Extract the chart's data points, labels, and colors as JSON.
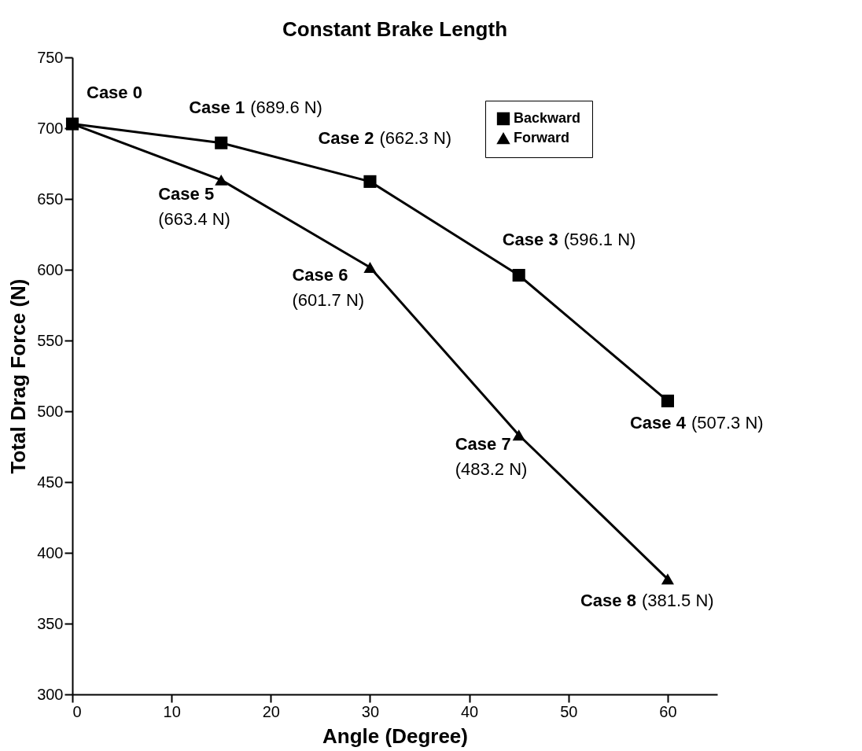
{
  "chart_data": {
    "type": "line",
    "title": "Constant Brake Length",
    "xlabel": "Angle (Degree)",
    "ylabel": "Total Drag Force (N)",
    "x": [
      0,
      15,
      30,
      45,
      60
    ],
    "series": [
      {
        "name": "Backward",
        "color": "#000000",
        "marker": "square",
        "values": [
          703,
          689.6,
          662.3,
          596.1,
          507.3
        ]
      },
      {
        "name": "Forward",
        "color": "#000000",
        "marker": "triangle",
        "values": [
          703,
          663.4,
          601.7,
          483.2,
          381.5
        ]
      }
    ],
    "xlim": [
      0,
      65
    ],
    "xticks": [
      0,
      10,
      20,
      30,
      40,
      50,
      60
    ],
    "ylim": [
      300,
      750
    ],
    "yticks": [
      300,
      350,
      400,
      450,
      500,
      550,
      600,
      650,
      700,
      750
    ],
    "grid": false,
    "legend": "top right",
    "line_style": "solid",
    "annotations": [
      {
        "text": "Case 0",
        "x": 0,
        "y": 703
      },
      {
        "text": "Case 1 (689.6 N)",
        "x": 15,
        "y": 689.6
      },
      {
        "text": "Case 2 (662.3 N)",
        "x": 30,
        "y": 662.3
      },
      {
        "text": "Case 3 (596.1 N)",
        "x": 45,
        "y": 596.1
      },
      {
        "text": "Case 4 (507.3 N)",
        "x": 60,
        "y": 507.3
      },
      {
        "text": "Case 5 (663.4 N)",
        "x": 15,
        "y": 663.4
      },
      {
        "text": "Case 6 (601.7 N)",
        "x": 30,
        "y": 601.7
      },
      {
        "text": "Case 7 (483.2 N)",
        "x": 45,
        "y": 483.2
      },
      {
        "text": "Case 8 (381.5 N)",
        "x": 60,
        "y": 381.5
      }
    ]
  }
}
